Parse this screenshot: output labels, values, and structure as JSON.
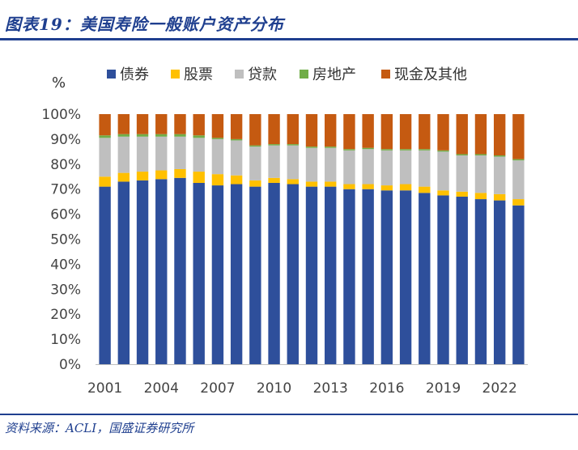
{
  "header": {
    "title": "图表19：美国寿险一般账户资产分布"
  },
  "footer": {
    "source": "资料来源：ACLI，国盛证券研究所"
  },
  "chart_data": {
    "type": "bar",
    "stacked": true,
    "unit_label": "%",
    "years": [
      2001,
      2002,
      2003,
      2004,
      2005,
      2006,
      2007,
      2008,
      2009,
      2010,
      2011,
      2012,
      2013,
      2014,
      2015,
      2016,
      2017,
      2018,
      2019,
      2020,
      2021,
      2022,
      2023
    ],
    "x_tick_labels": [
      "2001",
      "2004",
      "2007",
      "2010",
      "2013",
      "2016",
      "2019",
      "2022"
    ],
    "y_tick_labels": [
      "0%",
      "10%",
      "20%",
      "30%",
      "40%",
      "50%",
      "60%",
      "70%",
      "80%",
      "90%",
      "100%"
    ],
    "ylim": [
      0,
      100
    ],
    "legend_position": "top",
    "series": [
      {
        "name": "债券",
        "color": "#2e4f9b",
        "values": [
          71,
          73,
          73.5,
          74,
          74.5,
          72.5,
          71.5,
          72,
          71,
          72.5,
          72,
          71,
          71,
          70,
          70,
          69.5,
          69.5,
          68.5,
          67.5,
          67,
          66,
          65.5,
          63.5
        ]
      },
      {
        "name": "股票",
        "color": "#ffc000",
        "values": [
          4,
          3.5,
          3.5,
          3.5,
          3.5,
          4.5,
          4.5,
          3.5,
          2.5,
          2,
          2,
          2,
          2,
          2,
          2,
          2,
          2.5,
          2.5,
          2,
          2,
          2.5,
          2.5,
          2.5
        ]
      },
      {
        "name": "贷款",
        "color": "#bfbfbf",
        "values": [
          15.5,
          14.5,
          14,
          13.5,
          13,
          13.5,
          14,
          14,
          13.5,
          13,
          13.5,
          13.5,
          13.5,
          13.5,
          14,
          14,
          13.5,
          14.5,
          15.5,
          14.5,
          15,
          15,
          15.5
        ]
      },
      {
        "name": "房地产",
        "color": "#70ad47",
        "values": [
          1,
          1,
          1,
          1,
          1,
          1,
          0.5,
          0.5,
          0.5,
          0.5,
          0.5,
          0.5,
          0.5,
          0.5,
          0.5,
          0.5,
          0.5,
          0.5,
          0.5,
          0.5,
          0.5,
          0.5,
          0.5
        ]
      },
      {
        "name": "现金及其他",
        "color": "#c55a11",
        "values": [
          8.5,
          8,
          8,
          8,
          8,
          8.5,
          9.5,
          10,
          12.5,
          12,
          12,
          13,
          13,
          14,
          13.5,
          14,
          14,
          14,
          14.5,
          16,
          16,
          16.5,
          18
        ]
      }
    ]
  }
}
